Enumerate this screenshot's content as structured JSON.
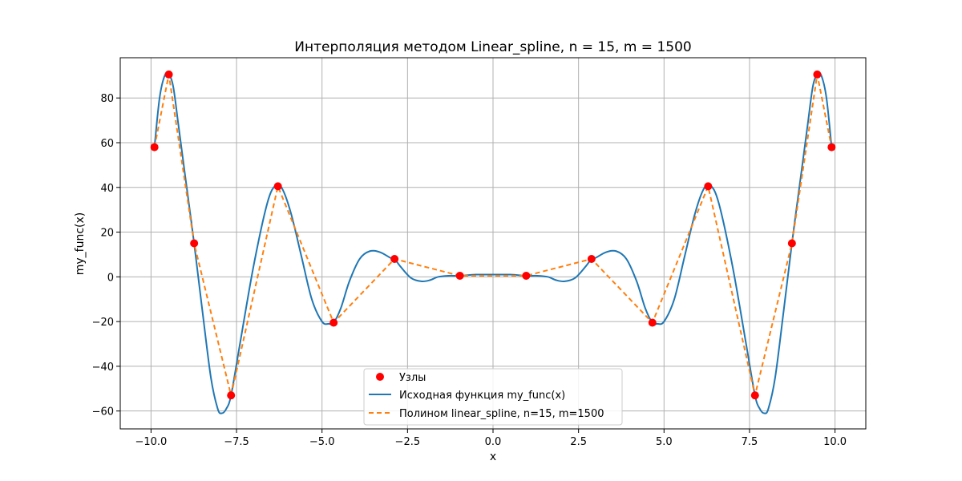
{
  "chart_data": {
    "type": "line",
    "title": "Интерполяция методом Linear_spline, n = 15, m = 1500",
    "xlabel": "x",
    "ylabel": "my_func(x)",
    "xlim": [
      -10.9,
      10.9
    ],
    "ylim": [
      -68,
      98
    ],
    "xticks": [
      -10.0,
      -7.5,
      -5.0,
      -2.5,
      0.0,
      2.5,
      5.0,
      7.5,
      10.0
    ],
    "xtick_labels": [
      "−10.0",
      "−7.5",
      "−5.0",
      "−2.5",
      "0.0",
      "2.5",
      "5.0",
      "7.5",
      "10.0"
    ],
    "yticks": [
      -60,
      -40,
      -20,
      0,
      20,
      40,
      60,
      80
    ],
    "ytick_labels": [
      "−60",
      "−40",
      "−20",
      "0",
      "20",
      "40",
      "60",
      "80"
    ],
    "grid": true,
    "legend_position": "bottom-center",
    "series": [
      {
        "name": "Узлы",
        "kind": "scatter",
        "color": "#ff0000",
        "x": [
          -9.9,
          -9.48,
          -8.74,
          -7.66,
          -6.29,
          -4.66,
          -2.88,
          -0.97,
          0.97,
          2.88,
          4.66,
          6.29,
          7.66,
          8.74,
          9.48,
          9.9
        ],
        "y": [
          58,
          90.5,
          15,
          -53,
          40.5,
          -20.5,
          8,
          0.5,
          0.5,
          8,
          -20.5,
          40.5,
          -53,
          15,
          90.5,
          58
        ]
      },
      {
        "name": "Исходная функция my_func(x)",
        "kind": "line",
        "color": "#1f77b4",
        "x": [
          -9.9,
          -9.75,
          -9.6,
          -9.48,
          -9.35,
          -9.2,
          -9.0,
          -8.74,
          -8.5,
          -8.25,
          -8.05,
          -7.93,
          -7.8,
          -7.66,
          -7.4,
          -7.0,
          -6.6,
          -6.35,
          -6.15,
          -5.9,
          -5.6,
          -5.3,
          -5.0,
          -4.8,
          -4.66,
          -4.45,
          -4.2,
          -3.9,
          -3.6,
          -3.3,
          -3.0,
          -2.88,
          -2.7,
          -2.4,
          -2.1,
          -1.85,
          -1.6,
          -1.3,
          -0.97,
          -0.5,
          0.0,
          0.5,
          0.97,
          1.3,
          1.6,
          1.85,
          2.1,
          2.4,
          2.7,
          2.88,
          3.0,
          3.3,
          3.6,
          3.9,
          4.2,
          4.45,
          4.66,
          4.8,
          5.0,
          5.3,
          5.6,
          5.9,
          6.15,
          6.35,
          6.6,
          7.0,
          7.4,
          7.66,
          7.8,
          7.93,
          8.05,
          8.25,
          8.5,
          8.74,
          9.0,
          9.2,
          9.35,
          9.48,
          9.6,
          9.75,
          9.9
        ],
        "y": [
          58,
          80,
          90,
          90.5,
          85,
          68,
          45,
          15,
          -15,
          -45,
          -59,
          -61,
          -59,
          -53,
          -30,
          5,
          33,
          41,
          39,
          28,
          9,
          -10,
          -20,
          -21,
          -20.5,
          -14,
          -2,
          8,
          11.5,
          11,
          8.5,
          8,
          4.5,
          -0.5,
          -2,
          -1.5,
          0,
          0.5,
          0.5,
          1,
          1,
          1,
          0.5,
          0.5,
          0,
          -1.5,
          -2,
          -0.5,
          4.5,
          8,
          8.5,
          11,
          11.5,
          8,
          -2,
          -14,
          -20.5,
          -21,
          -20,
          -10,
          9,
          28,
          39,
          41,
          33,
          5,
          -30,
          -53,
          -59,
          -61,
          -59,
          -45,
          -15,
          15,
          45,
          68,
          85,
          90.5,
          90,
          80,
          58
        ]
      },
      {
        "name": "Полином linear_spline, n=15, m=1500",
        "kind": "line",
        "dashed": true,
        "color": "#ff7f0e",
        "x": [
          -9.9,
          -9.48,
          -8.74,
          -7.66,
          -6.29,
          -4.66,
          -2.88,
          -0.97,
          0.97,
          2.88,
          4.66,
          6.29,
          7.66,
          8.74,
          9.48,
          9.9
        ],
        "y": [
          58,
          90.5,
          15,
          -53,
          40.5,
          -20.5,
          8,
          0.5,
          0.5,
          8,
          -20.5,
          40.5,
          -53,
          15,
          90.5,
          58
        ]
      }
    ]
  }
}
